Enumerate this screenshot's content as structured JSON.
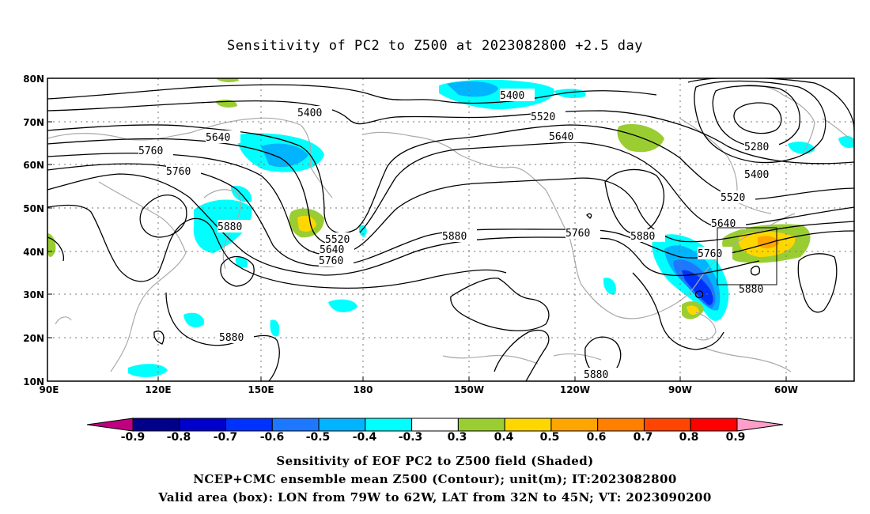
{
  "title": "Sensitivity of PC2 to Z500 at 2023082800 +2.5 day",
  "axes": {
    "lat_labels": [
      "80N",
      "70N",
      "60N",
      "50N",
      "40N",
      "30N",
      "20N",
      "10N"
    ],
    "lon_labels": [
      "90E",
      "120E",
      "150E",
      "180",
      "150W",
      "120W",
      "90W",
      "60W"
    ]
  },
  "contour_labels": {
    "c1": "5400",
    "c2": "5400",
    "c3": "5520",
    "c4": "5640",
    "c5": "5640",
    "c6": "5760",
    "c7": "5760",
    "c8": "5880",
    "c9": "5520",
    "c10": "5640",
    "c11": "5760",
    "c12": "5880",
    "c13": "5760",
    "c14": "5880",
    "c15": "5280",
    "c16": "5400",
    "c17": "5520",
    "c18": "5640",
    "c19": "5760",
    "c20": "5880",
    "c21": "5880",
    "c22": "5880"
  },
  "colorbar": {
    "ticks": [
      "-0.9",
      "-0.8",
      "-0.7",
      "-0.6",
      "-0.5",
      "-0.4",
      "-0.3",
      "0.3",
      "0.4",
      "0.5",
      "0.6",
      "0.7",
      "0.8",
      "0.9"
    ],
    "colors": [
      "#00008b",
      "#0000cd",
      "#0032ff",
      "#1e78ff",
      "#00b4ff",
      "#00ffff",
      "#ffffff",
      "#9acd32",
      "#ffd700",
      "#ffa500",
      "#ff7f00",
      "#ff4500",
      "#ff0000"
    ],
    "low_color": "#c00080",
    "high_color": "#ff9ec8"
  },
  "captions": {
    "line1": "Sensitivity of EOF PC2 to Z500 field (Shaded)",
    "line2": "NCEP+CMC ensemble mean Z500 (Contour); unit(m); IT:2023082800",
    "line3": "Valid area (box): LON from 79W to 62W, LAT from 32N to 45N; VT: 2023090200"
  }
}
